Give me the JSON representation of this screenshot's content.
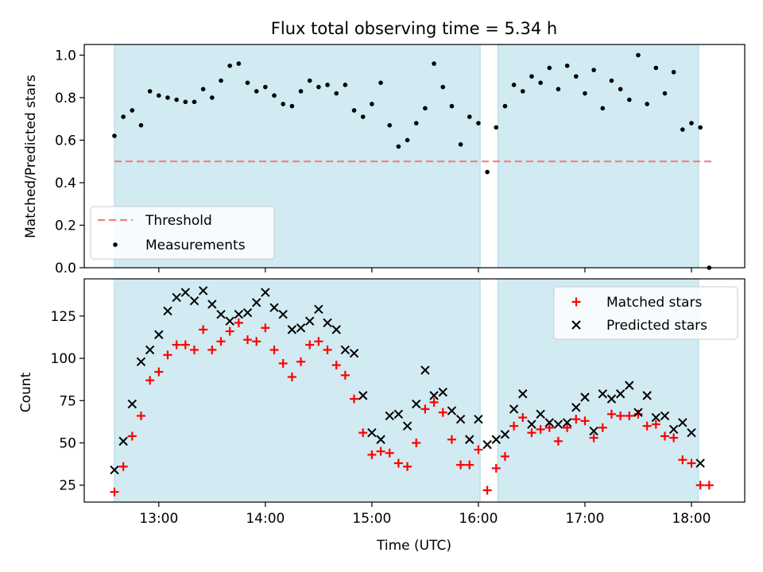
{
  "title": "Flux total observing time = 5.34 h",
  "colors": {
    "band": "#add8e6",
    "threshold": "#f08080",
    "measure": "#000000",
    "matched": "#ff0000",
    "predicted": "#000000"
  },
  "chart_data": [
    {
      "type": "scatter",
      "ylabel": "Matched/Predicted stars",
      "ylim": [
        0,
        1.05
      ],
      "yticks": [
        "0.0",
        "0.2",
        "0.4",
        "0.6",
        "0.8",
        "1.0"
      ],
      "xlim": [
        "12:18",
        "18:30"
      ],
      "shaded_spans": [
        [
          "12:35",
          "16:01"
        ],
        [
          "16:11",
          "18:04"
        ]
      ],
      "legend": {
        "placement": "lower-left",
        "entries": [
          "Threshold",
          "Measurements"
        ]
      },
      "threshold": {
        "name": "Threshold",
        "y": 0.5,
        "x": [
          "12:35",
          "18:12"
        ]
      },
      "series": [
        {
          "name": "Measurements",
          "x": [
            "12:35",
            "12:40",
            "12:45",
            "12:50",
            "12:55",
            "13:00",
            "13:05",
            "13:10",
            "13:15",
            "13:20",
            "13:25",
            "13:30",
            "13:35",
            "13:40",
            "13:45",
            "13:50",
            "13:55",
            "14:00",
            "14:05",
            "14:10",
            "14:15",
            "14:20",
            "14:25",
            "14:30",
            "14:35",
            "14:40",
            "14:45",
            "14:50",
            "14:55",
            "15:00",
            "15:05",
            "15:10",
            "15:15",
            "15:20",
            "15:25",
            "15:30",
            "15:35",
            "15:40",
            "15:45",
            "15:50",
            "15:55",
            "16:00",
            "16:05",
            "16:10",
            "16:15",
            "16:20",
            "16:25",
            "16:30",
            "16:35",
            "16:40",
            "16:45",
            "16:50",
            "16:55",
            "17:00",
            "17:05",
            "17:10",
            "17:15",
            "17:20",
            "17:25",
            "17:30",
            "17:35",
            "17:40",
            "17:45",
            "17:50",
            "17:55",
            "18:00",
            "18:05",
            "18:10"
          ],
          "y": [
            0.62,
            0.71,
            0.74,
            0.67,
            0.83,
            0.81,
            0.8,
            0.79,
            0.78,
            0.78,
            0.84,
            0.8,
            0.88,
            0.95,
            0.96,
            0.87,
            0.83,
            0.85,
            0.81,
            0.77,
            0.76,
            0.83,
            0.88,
            0.85,
            0.86,
            0.82,
            0.86,
            0.74,
            0.71,
            0.77,
            0.87,
            0.67,
            0.57,
            0.6,
            0.68,
            0.75,
            0.96,
            0.85,
            0.76,
            0.58,
            0.71,
            0.68,
            0.45,
            0.66,
            0.76,
            0.86,
            0.83,
            0.9,
            0.87,
            0.94,
            0.84,
            0.95,
            0.9,
            0.82,
            0.93,
            0.75,
            0.88,
            0.84,
            0.79,
            1.0,
            0.77,
            0.94,
            0.82,
            0.92,
            0.65,
            0.68,
            0.66,
            0.0
          ]
        }
      ]
    },
    {
      "type": "scatter",
      "xlabel": "Time (UTC)",
      "ylabel": "Count",
      "ylim": [
        15,
        147
      ],
      "yticks": [
        "25",
        "50",
        "75",
        "100",
        "125"
      ],
      "xticks": [
        "13:00",
        "14:00",
        "15:00",
        "16:00",
        "17:00",
        "18:00"
      ],
      "xlim": [
        "12:18",
        "18:30"
      ],
      "shaded_spans": [
        [
          "12:35",
          "16:01"
        ],
        [
          "16:11",
          "18:04"
        ]
      ],
      "legend": {
        "placement": "top-right",
        "entries": [
          "Matched stars",
          "Predicted stars"
        ]
      },
      "series": [
        {
          "name": "Matched stars",
          "x": [
            "12:35",
            "12:40",
            "12:45",
            "12:50",
            "12:55",
            "13:00",
            "13:05",
            "13:10",
            "13:15",
            "13:20",
            "13:25",
            "13:30",
            "13:35",
            "13:40",
            "13:45",
            "13:50",
            "13:55",
            "14:00",
            "14:05",
            "14:10",
            "14:15",
            "14:20",
            "14:25",
            "14:30",
            "14:35",
            "14:40",
            "14:45",
            "14:50",
            "14:55",
            "15:00",
            "15:05",
            "15:10",
            "15:15",
            "15:20",
            "15:25",
            "15:30",
            "15:35",
            "15:40",
            "15:45",
            "15:50",
            "15:55",
            "16:00",
            "16:05",
            "16:10",
            "16:15",
            "16:20",
            "16:25",
            "16:30",
            "16:35",
            "16:40",
            "16:45",
            "16:50",
            "16:55",
            "17:00",
            "17:05",
            "17:10",
            "17:15",
            "17:20",
            "17:25",
            "17:30",
            "17:35",
            "17:40",
            "17:45",
            "17:50",
            "17:55",
            "18:00",
            "18:05",
            "18:10"
          ],
          "y": [
            21,
            36,
            54,
            66,
            87,
            92,
            102,
            108,
            108,
            105,
            117,
            105,
            110,
            116,
            121,
            111,
            110,
            118,
            105,
            97,
            89,
            98,
            108,
            110,
            105,
            96,
            90,
            76,
            56,
            43,
            45,
            44,
            38,
            36,
            50,
            70,
            74,
            68,
            52,
            37,
            37,
            46,
            22,
            35,
            42,
            60,
            65,
            56,
            58,
            59,
            51,
            59,
            64,
            63,
            53,
            59,
            67,
            66,
            66,
            67,
            60,
            61,
            54,
            53,
            40,
            38,
            25,
            25
          ]
        },
        {
          "name": "Predicted stars",
          "x": [
            "12:35",
            "12:40",
            "12:45",
            "12:50",
            "12:55",
            "13:00",
            "13:05",
            "13:10",
            "13:15",
            "13:20",
            "13:25",
            "13:30",
            "13:35",
            "13:40",
            "13:45",
            "13:50",
            "13:55",
            "14:00",
            "14:05",
            "14:10",
            "14:15",
            "14:20",
            "14:25",
            "14:30",
            "14:35",
            "14:40",
            "14:45",
            "14:50",
            "14:55",
            "15:00",
            "15:05",
            "15:10",
            "15:15",
            "15:20",
            "15:25",
            "15:30",
            "15:35",
            "15:40",
            "15:45",
            "15:50",
            "15:55",
            "16:00",
            "16:05",
            "16:10",
            "16:15",
            "16:20",
            "16:25",
            "16:30",
            "16:35",
            "16:40",
            "16:45",
            "16:50",
            "16:55",
            "17:00",
            "17:05",
            "17:10",
            "17:15",
            "17:20",
            "17:25",
            "17:30",
            "17:35",
            "17:40",
            "17:45",
            "17:50",
            "17:55",
            "18:00",
            "18:05"
          ],
          "y": [
            34,
            51,
            73,
            98,
            105,
            114,
            128,
            136,
            139,
            134,
            140,
            132,
            126,
            122,
            126,
            127,
            133,
            139,
            130,
            126,
            117,
            118,
            122,
            129,
            121,
            117,
            105,
            103,
            78,
            56,
            52,
            66,
            67,
            60,
            73,
            93,
            78,
            80,
            69,
            64,
            52,
            64,
            49,
            52,
            55,
            70,
            79,
            61,
            67,
            62,
            61,
            62,
            71,
            77,
            57,
            79,
            76,
            79,
            84,
            68,
            78,
            65,
            66,
            58,
            62,
            56,
            38
          ]
        }
      ]
    }
  ]
}
